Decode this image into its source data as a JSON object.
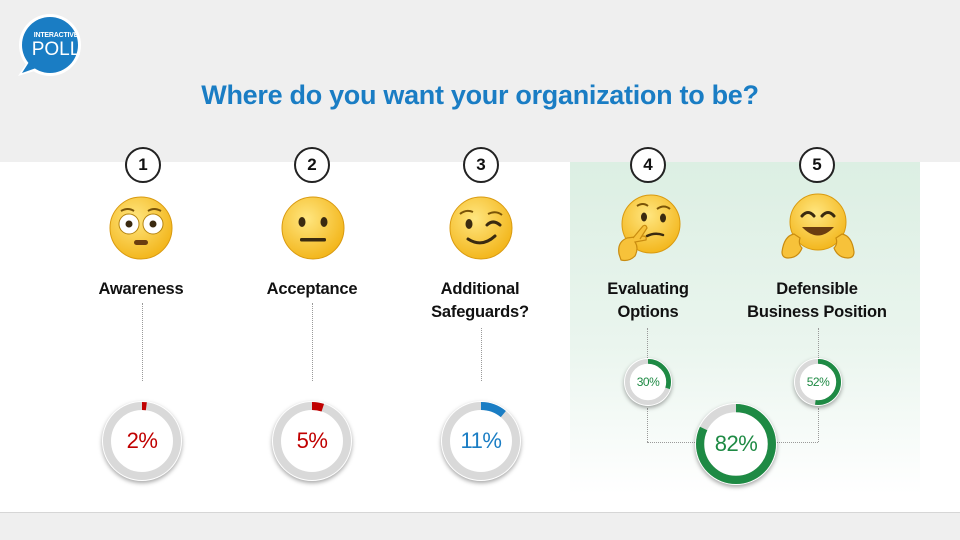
{
  "badge": {
    "line1": "INTERACTIVE",
    "line2": "POLL"
  },
  "title": "Where do you want your organization to be?",
  "options": [
    {
      "number": "1",
      "label_lines": [
        "Awareness"
      ],
      "emoji": "flushed-face-icon",
      "result": "2%",
      "percent": 2,
      "color": "#c00000"
    },
    {
      "number": "2",
      "label_lines": [
        "Acceptance"
      ],
      "emoji": "neutral-face-icon",
      "result": "5%",
      "percent": 5,
      "color": "#c00000"
    },
    {
      "number": "3",
      "label_lines": [
        "Additional",
        "Safeguards?"
      ],
      "emoji": "winking-face-icon",
      "result": "11%",
      "percent": 11,
      "color": "#1a7dc4"
    },
    {
      "number": "4",
      "label_lines": [
        "Evaluating",
        "Options"
      ],
      "emoji": "thinking-face-icon",
      "result": "30%",
      "percent": 30,
      "color": "#1e8a44"
    },
    {
      "number": "5",
      "label_lines": [
        "Defensible",
        "Business Position"
      ],
      "emoji": "hugging-face-icon",
      "result": "52%",
      "percent": 52,
      "color": "#1e8a44"
    }
  ],
  "combined": {
    "result": "82%",
    "percent": 82,
    "color": "#1e8a44"
  }
}
